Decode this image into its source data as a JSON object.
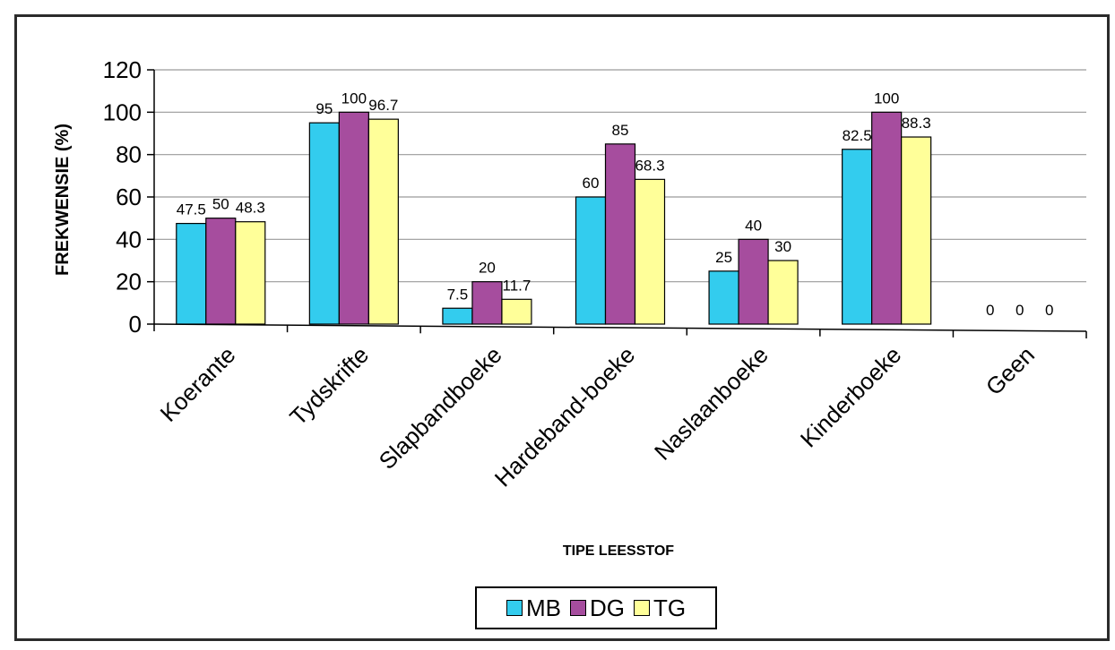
{
  "chart_data": {
    "type": "bar",
    "categories": [
      "Koerante",
      "Tydskrifte",
      "Slapbandboeke",
      "Hardeband-boeke",
      "Naslaanboeke",
      "Kinderboeke",
      "Geen"
    ],
    "series": [
      {
        "name": "MB",
        "color": "#33CCEE",
        "values": [
          47.5,
          95,
          7.5,
          60,
          25,
          82.5,
          0
        ],
        "labels": [
          "47.5",
          "95",
          "7.5",
          "60",
          "25",
          "82.5",
          "0"
        ]
      },
      {
        "name": "DG",
        "color": "#A64D9E",
        "values": [
          50,
          100,
          20,
          85,
          40,
          100,
          0
        ],
        "labels": [
          "50",
          "100",
          "20",
          "85",
          "40",
          "100",
          "0"
        ]
      },
      {
        "name": "TG",
        "color": "#FFFF99",
        "values": [
          48.3,
          96.7,
          11.7,
          68.3,
          30,
          88.3,
          0
        ],
        "labels": [
          "48.3",
          "96.7",
          "11.7",
          "68.3",
          "30",
          "88.3",
          "0"
        ]
      }
    ],
    "xlabel": "TIPE LEESSTOF",
    "ylabel": "FREKWENSIE (%)",
    "ylim": [
      0,
      120
    ],
    "yticks": [
      "0",
      "20",
      "40",
      "60",
      "80",
      "100",
      "120"
    ],
    "grid": true,
    "legend_position": "bottom"
  }
}
